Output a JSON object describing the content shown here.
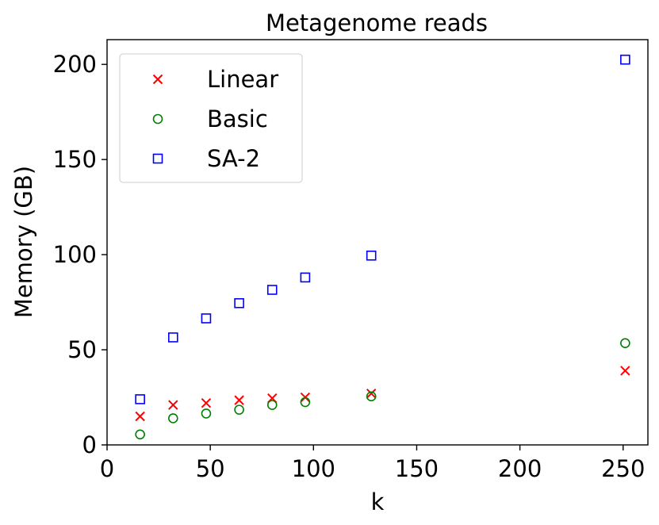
{
  "chart_data": {
    "type": "scatter",
    "title": "Metagenome reads",
    "xlabel": "k",
    "ylabel": "Memory (GB)",
    "xlim": [
      0,
      262
    ],
    "ylim": [
      0,
      213
    ],
    "xticks": [
      0,
      50,
      100,
      150,
      200,
      250
    ],
    "yticks": [
      0,
      50,
      100,
      150,
      200
    ],
    "grid": false,
    "legend_position": "top-left",
    "series": [
      {
        "name": "Linear",
        "marker": "x",
        "color": "#ff0000",
        "x": [
          16,
          32,
          48,
          64,
          80,
          96,
          128,
          251
        ],
        "y": [
          15,
          21,
          22,
          23.5,
          24.5,
          25,
          27,
          39
        ]
      },
      {
        "name": "Basic",
        "marker": "circle",
        "color": "#008000",
        "x": [
          16,
          32,
          48,
          64,
          80,
          96,
          128,
          251
        ],
        "y": [
          5.5,
          14,
          16.5,
          18.5,
          21,
          22.5,
          25.5,
          53.5
        ]
      },
      {
        "name": "SA-2",
        "marker": "square",
        "color": "#0000ff",
        "x": [
          16,
          32,
          48,
          64,
          80,
          96,
          128,
          251
        ],
        "y": [
          24,
          56.5,
          66.5,
          74.5,
          81.5,
          88,
          99.5,
          202.5
        ]
      }
    ]
  }
}
